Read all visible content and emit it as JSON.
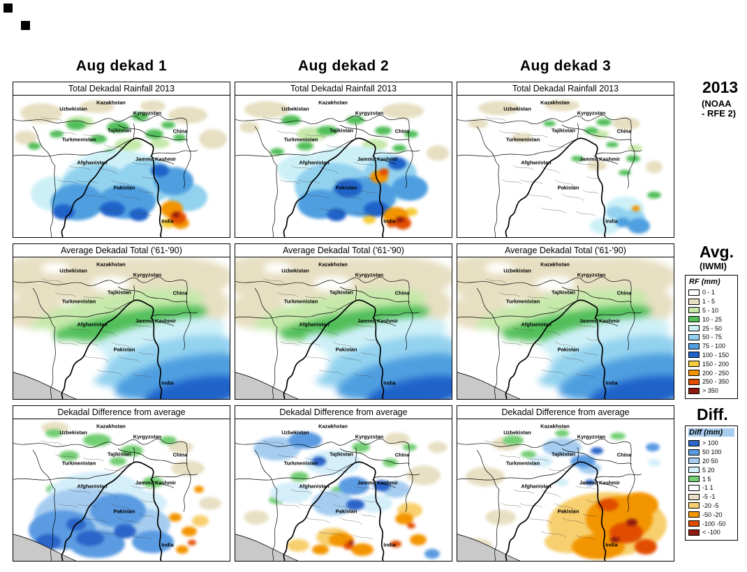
{
  "columns": [
    "Aug dekad 1",
    "Aug dekad 2",
    "Aug dekad 3"
  ],
  "row_titles": [
    "Total Dekadal Rainfall 2013",
    "Average Dekadal Total ('61-'90)",
    "Dekadal Difference from average"
  ],
  "map_labels": [
    "Kazakhstan",
    "Uzbekistan",
    "Kyrgyzstan",
    "Tajikistan",
    "Turkmenistan",
    "China",
    "Afghanistan",
    "Jammu Kashmir",
    "Pakistan",
    "India"
  ],
  "side": {
    "year": "2013",
    "year_source_line1": "(NOAA",
    "year_source_line2": "- RFE 2)",
    "avg_label": "Avg.",
    "avg_source": "(IWMI)",
    "diff_label": "Diff."
  },
  "legends": {
    "rf": {
      "title": "RF (mm)",
      "entries": [
        {
          "label": "0 - 1",
          "color": "#ffffff"
        },
        {
          "label": "1 - 5",
          "color": "#e7dfc2"
        },
        {
          "label": "5 - 10",
          "color": "#c6e9ab"
        },
        {
          "label": "10 - 25",
          "color": "#52bf5a"
        },
        {
          "label": "25 - 50",
          "color": "#cdf0f7"
        },
        {
          "label": "50 - 75",
          "color": "#93d2ef"
        },
        {
          "label": "75 - 100",
          "color": "#4f9fe0"
        },
        {
          "label": "100 - 150",
          "color": "#1f63c9"
        },
        {
          "label": "150 - 200",
          "color": "#f5cd3c"
        },
        {
          "label": "200 - 250",
          "color": "#f29400"
        },
        {
          "label": "250 - 350",
          "color": "#e14e00"
        },
        {
          "label": "> 350",
          "color": "#8f1a10"
        }
      ]
    },
    "diff": {
      "title": "Diff (mm)",
      "title_bg": "#a9cdee",
      "entries": [
        {
          "label": "> 100",
          "color": "#2b65c9"
        },
        {
          "label": "50  100",
          "color": "#5b9be2"
        },
        {
          "label": "20  50",
          "color": "#a6cdf0"
        },
        {
          "label": "5  20",
          "color": "#d4eefa"
        },
        {
          "label": "1  5",
          "color": "#74ce74"
        },
        {
          "label": "-1  1",
          "color": "#ffffff"
        },
        {
          "label": "-5  -1",
          "color": "#e8e0c4"
        },
        {
          "label": "-20  -5",
          "color": "#f7cf6e"
        },
        {
          "label": "-50  -20",
          "color": "#f39500"
        },
        {
          "label": "-100  -50",
          "color": "#e14d00"
        },
        {
          "label": "< -100",
          "color": "#8f1a12"
        }
      ]
    }
  },
  "map_extra": {
    "sea_color": "#c9c9c9"
  }
}
